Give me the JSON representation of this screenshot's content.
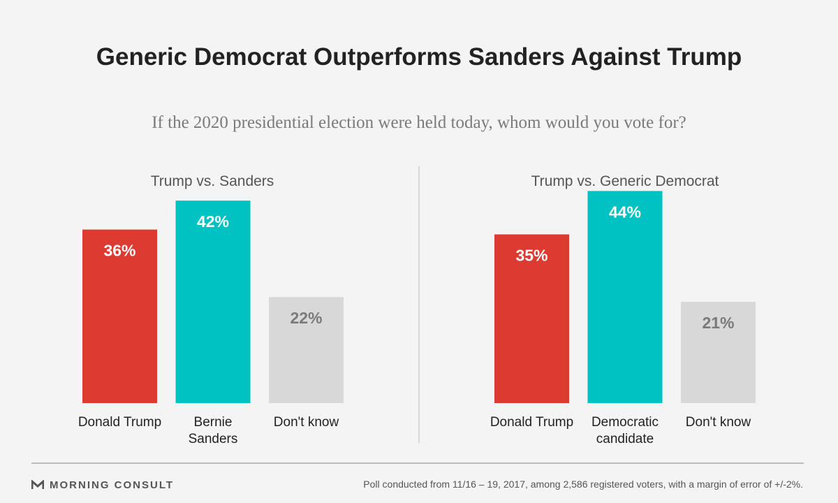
{
  "title": "Generic Democrat Outperforms Sanders Against Trump",
  "subtitle": "If the 2020 presidential election were held today, whom would you vote for?",
  "colors": {
    "trump": "#dd3a32",
    "democrat": "#00c2c2",
    "dont_know": "#d8d8d8",
    "label_on_color": "#ffffff",
    "label_on_gray": "#7a7a7a"
  },
  "chart_data": [
    {
      "type": "bar",
      "title": "Trump vs. Sanders",
      "categories": [
        [
          "Donald Trump"
        ],
        [
          "Bernie",
          "Sanders"
        ],
        [
          "Don't know"
        ]
      ],
      "values": [
        36,
        42,
        22
      ],
      "value_labels": [
        "36%",
        "42%",
        "22%"
      ],
      "bar_colors": [
        "trump",
        "democrat",
        "dont_know"
      ],
      "ylim": [
        0,
        50
      ],
      "grid": false
    },
    {
      "type": "bar",
      "title": "Trump vs. Generic Democrat",
      "categories": [
        [
          "Donald Trump"
        ],
        [
          "Democratic",
          "candidate"
        ],
        [
          "Don't know"
        ]
      ],
      "values": [
        35,
        44,
        21
      ],
      "value_labels": [
        "35%",
        "44%",
        "21%"
      ],
      "bar_colors": [
        "trump",
        "democrat",
        "dont_know"
      ],
      "ylim": [
        0,
        50
      ],
      "grid": false
    }
  ],
  "footer": {
    "logo_text": "MORNING CONSULT",
    "logo_icon": "morning-consult-logo-icon",
    "source": "Poll conducted from 11/16 – 19, 2017, among 2,586 registered voters, with a margin of error of +/-2%."
  }
}
